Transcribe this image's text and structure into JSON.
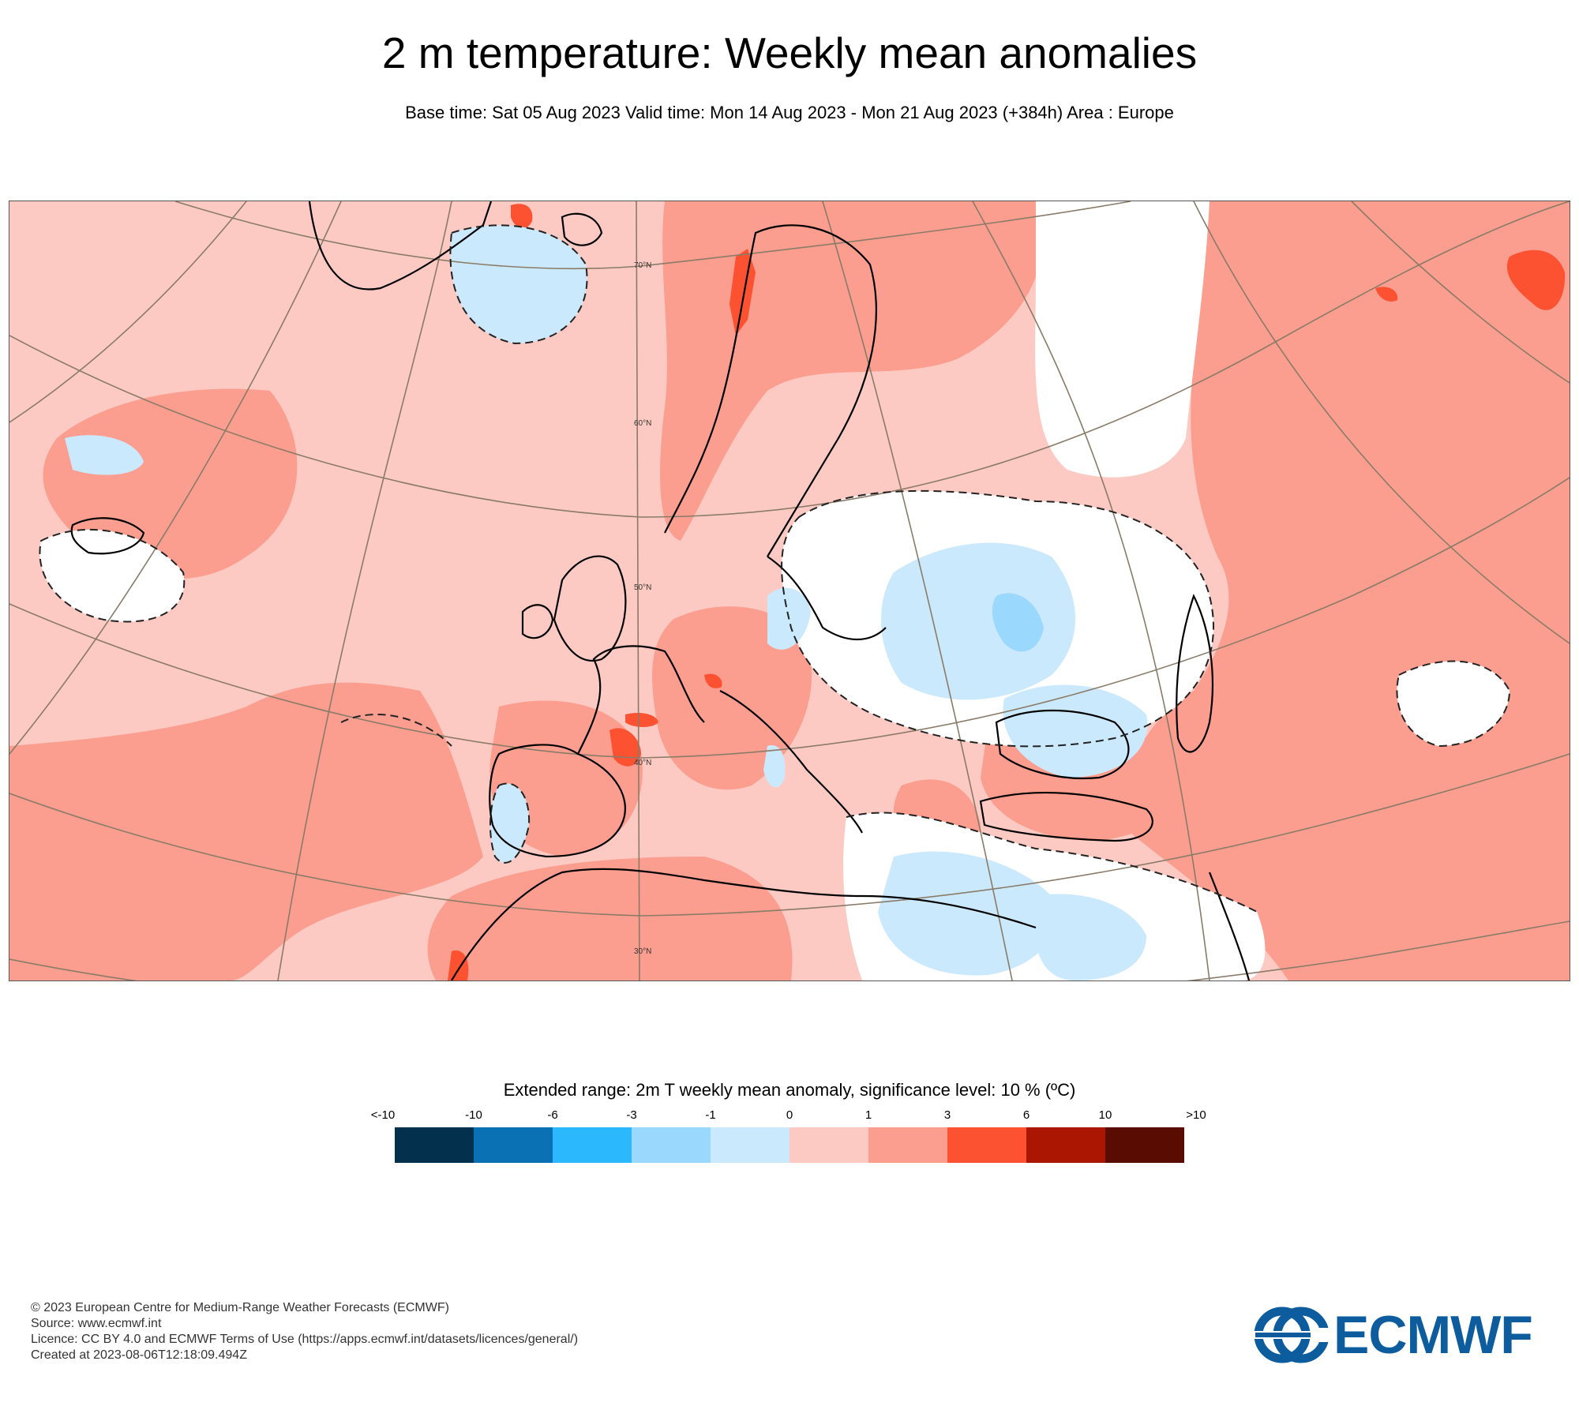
{
  "header": {
    "title": "2 m temperature: Weekly mean anomalies",
    "subtitle": "Base time: Sat 05 Aug 2023 Valid time: Mon 14 Aug 2023 - Mon 21 Aug 2023 (+384h) Area : Europe"
  },
  "map": {
    "latitude_labels": [
      "70°N",
      "60°N",
      "50°N",
      "40°N",
      "30°N"
    ],
    "colors": {
      "land_outline": "#000000",
      "graticule": "#8a7b68",
      "significance_contour": "#222222"
    }
  },
  "legend": {
    "title": "Extended range: 2m T weekly mean anomaly, significance level: 10 % (ºC)",
    "labels": [
      "<-10",
      "-10",
      "-6",
      "-3",
      "-1",
      "0",
      "1",
      "3",
      "6",
      "10",
      ">10"
    ],
    "colors": [
      "#02304d",
      "#0a72b4",
      "#2bb8fd",
      "#9ad8fd",
      "#cbe9fd",
      "#fdcac3",
      "#fb9e8f",
      "#fc5232",
      "#ab1603",
      "#580c02"
    ]
  },
  "footer": {
    "lines": [
      "© 2023 European Centre for Medium-Range Weather Forecasts (ECMWF)",
      "Source: www.ecmwf.int",
      "Licence: CC BY 4.0 and ECMWF Terms of Use (https://apps.ecmwf.int/datasets/licences/general/)",
      "Created at 2023-08-06T12:18:09.494Z"
    ]
  },
  "logo": {
    "text": "ECMWF",
    "color": "#0c5c9e"
  }
}
